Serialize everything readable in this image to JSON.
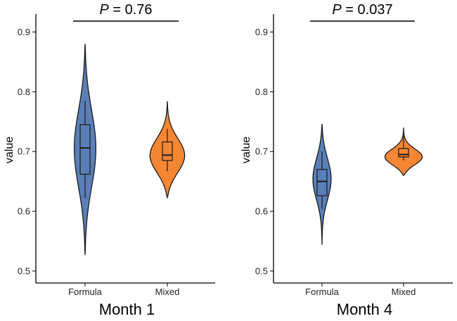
{
  "chart_data": [
    {
      "type": "violin",
      "title": "Month 1",
      "xlabel": "Month 1",
      "ylabel": "value",
      "ylim": [
        0.48,
        0.93
      ],
      "yticks": [
        "0.5",
        "0.6",
        "0.7",
        "0.8",
        "0.9"
      ],
      "categories": [
        "Formula",
        "Mixed"
      ],
      "significance": {
        "prefix": "P",
        "label": " = 0.76",
        "pair": [
          "Formula",
          "Mixed"
        ]
      },
      "series": [
        {
          "name": "Formula",
          "color": "#5a7fb8",
          "violin": {
            "min": 0.527,
            "max": 0.88,
            "peak": 0.705,
            "spread": 0.068,
            "maxWidth": 0.26
          },
          "box": {
            "q1": 0.662,
            "median": 0.706,
            "q3": 0.745,
            "whisker_low": 0.622,
            "whisker_high": 0.785
          }
        },
        {
          "name": "Mixed",
          "color": "#f58634",
          "violin": {
            "min": 0.623,
            "max": 0.784,
            "peak": 0.692,
            "spread": 0.03,
            "maxWidth": 0.42
          },
          "box": {
            "q1": 0.685,
            "median": 0.694,
            "q3": 0.716,
            "whisker_low": 0.667,
            "whisker_high": 0.738
          }
        }
      ]
    },
    {
      "type": "violin",
      "title": "Month 4",
      "xlabel": "Month 4",
      "ylabel": "value",
      "ylim": [
        0.48,
        0.93
      ],
      "yticks": [
        "0.5",
        "0.6",
        "0.7",
        "0.8",
        "0.9"
      ],
      "categories": [
        "Formula",
        "Mixed"
      ],
      "significance": {
        "prefix": "P",
        "label": " = 0.037",
        "pair": [
          "Formula",
          "Mixed"
        ]
      },
      "series": [
        {
          "name": "Formula",
          "color": "#5a7fb8",
          "violin": {
            "min": 0.544,
            "max": 0.746,
            "peak": 0.655,
            "spread": 0.036,
            "maxWidth": 0.22
          },
          "box": {
            "q1": 0.626,
            "median": 0.65,
            "q3": 0.67,
            "whisker_low": 0.604,
            "whisker_high": 0.7
          }
        },
        {
          "name": "Mixed",
          "color": "#f58634",
          "violin": {
            "min": 0.66,
            "max": 0.74,
            "peak": 0.69,
            "spread": 0.014,
            "maxWidth": 0.46
          },
          "box": {
            "q1": 0.691,
            "median": 0.695,
            "q3": 0.705,
            "whisker_low": 0.685,
            "whisker_high": 0.726
          }
        }
      ]
    }
  ]
}
